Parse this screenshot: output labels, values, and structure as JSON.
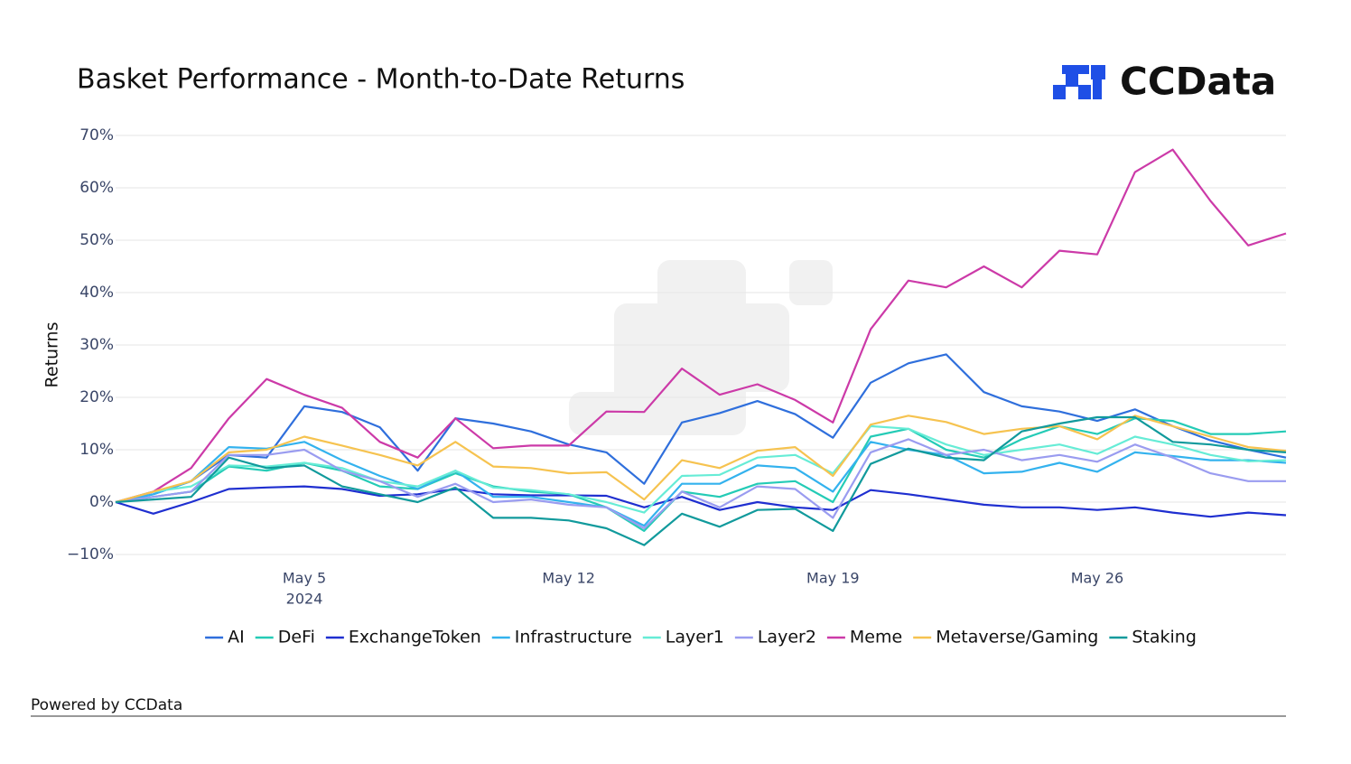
{
  "chart_data": {
    "type": "line",
    "title": "Basket Performance - Month-to-Date Returns",
    "brand": "CCData",
    "footer": "Powered by CCData",
    "ylabel": "Returns",
    "x_year_label": "2024",
    "x": [
      "2024-04-30",
      "2024-05-01",
      "2024-05-02",
      "2024-05-03",
      "2024-05-04",
      "2024-05-05",
      "2024-05-06",
      "2024-05-07",
      "2024-05-08",
      "2024-05-09",
      "2024-05-10",
      "2024-05-11",
      "2024-05-12",
      "2024-05-13",
      "2024-05-14",
      "2024-05-15",
      "2024-05-16",
      "2024-05-17",
      "2024-05-18",
      "2024-05-19",
      "2024-05-20",
      "2024-05-21",
      "2024-05-22",
      "2024-05-23",
      "2024-05-24",
      "2024-05-25",
      "2024-05-26",
      "2024-05-27",
      "2024-05-28",
      "2024-05-29",
      "2024-05-30",
      "2024-05-31"
    ],
    "xlim": [
      "2024-04-30",
      "2024-05-31"
    ],
    "xticks": [
      {
        "value": "2024-05-05",
        "label": "May 5"
      },
      {
        "value": "2024-05-12",
        "label": "May 12"
      },
      {
        "value": "2024-05-19",
        "label": "May 19"
      },
      {
        "value": "2024-05-26",
        "label": "May 26"
      }
    ],
    "ylim": [
      -11,
      70
    ],
    "yticks": [
      {
        "value": -10,
        "label": "−10%"
      },
      {
        "value": 0,
        "label": "0%"
      },
      {
        "value": 10,
        "label": "10%"
      },
      {
        "value": 20,
        "label": "20%"
      },
      {
        "value": 30,
        "label": "30%"
      },
      {
        "value": 40,
        "label": "40%"
      },
      {
        "value": 50,
        "label": "50%"
      },
      {
        "value": 60,
        "label": "60%"
      },
      {
        "value": 70,
        "label": "70%"
      }
    ],
    "grid": true,
    "legend": "bottom",
    "series": [
      {
        "name": "AI",
        "color": "#2f6fdc",
        "values": [
          0,
          1.5,
          4,
          9,
          8.5,
          18.3,
          17.2,
          14.3,
          6,
          16,
          15,
          13.5,
          11,
          9.5,
          3.5,
          15.2,
          17,
          19.3,
          16.8,
          12.3,
          22.8,
          26.5,
          28.2,
          21,
          18.3,
          17.3,
          15.5,
          17.7,
          14.5,
          11.8,
          10,
          8.5
        ]
      },
      {
        "name": "DeFi",
        "color": "#24cbb6",
        "values": [
          0,
          1,
          2,
          6.8,
          6,
          7.5,
          6,
          3,
          2.5,
          5.5,
          3,
          2,
          1.5,
          -1,
          -5.5,
          2,
          1,
          3.5,
          4,
          0,
          12.5,
          14,
          10,
          8.5,
          12,
          14.5,
          13,
          16,
          15.5,
          13,
          13,
          13.5
        ]
      },
      {
        "name": "ExchangeToken",
        "color": "#1f2fd0",
        "values": [
          0,
          -2.2,
          0,
          2.5,
          2.8,
          3,
          2.5,
          1.2,
          1.5,
          2.5,
          1.5,
          1.3,
          1.3,
          1.2,
          -1,
          1,
          -1.5,
          0,
          -1,
          -1.5,
          2.3,
          1.5,
          0.5,
          -0.5,
          -1,
          -1,
          -1.5,
          -1,
          -2,
          -2.8,
          -2,
          -2.5
        ]
      },
      {
        "name": "Infrastructure",
        "color": "#33b2ee",
        "values": [
          0,
          1.5,
          4,
          10.5,
          10.2,
          11.5,
          8,
          5,
          2.5,
          6,
          1,
          1,
          0,
          -1,
          -4.5,
          3.5,
          3.5,
          7,
          6.5,
          2,
          11.5,
          10,
          9,
          5.5,
          5.8,
          7.5,
          5.8,
          9.5,
          8.8,
          8,
          8,
          7.5
        ]
      },
      {
        "name": "Layer1",
        "color": "#66ecd6",
        "values": [
          0,
          2,
          3,
          7,
          6.8,
          7.5,
          6.5,
          4,
          3,
          6,
          2.8,
          2.3,
          1.5,
          0,
          -2,
          5,
          5.2,
          8.5,
          9,
          5.5,
          14.5,
          14,
          11,
          9,
          10,
          11,
          9.2,
          12.5,
          11,
          9,
          7.8,
          8
        ]
      },
      {
        "name": "Layer2",
        "color": "#9a9cf0",
        "values": [
          0,
          1,
          2,
          9,
          9,
          10,
          6,
          4,
          1,
          3.5,
          0,
          0.5,
          -0.5,
          -1,
          -5,
          2,
          -1,
          3,
          2.5,
          -3,
          9.5,
          12,
          9,
          10,
          8,
          9,
          7.7,
          11,
          8.5,
          5.5,
          4,
          4
        ]
      },
      {
        "name": "Meme",
        "color": "#cc3aa8",
        "values": [
          0,
          2,
          6.5,
          16,
          23.5,
          20.5,
          18,
          11.5,
          8.5,
          16,
          10.3,
          10.8,
          10.8,
          17.3,
          17.2,
          25.5,
          20.5,
          22.5,
          19.5,
          15.2,
          33,
          42.3,
          41,
          45,
          41,
          48,
          47.3,
          63,
          67.3,
          57.5,
          49,
          51.3
        ]
      },
      {
        "name": "Metaverse/Gaming",
        "color": "#f6c350",
        "values": [
          0,
          2,
          4,
          9.5,
          10,
          12.5,
          10.8,
          9,
          7,
          11.5,
          6.8,
          6.5,
          5.5,
          5.7,
          0.5,
          8,
          6.5,
          9.8,
          10.5,
          5,
          14.8,
          16.5,
          15.3,
          13,
          14,
          14.5,
          12,
          16.5,
          14.5,
          12.5,
          10.5,
          9.8
        ]
      },
      {
        "name": "Staking",
        "color": "#119a9c",
        "values": [
          0,
          0.5,
          1,
          8.5,
          6.5,
          7,
          3,
          1.5,
          0,
          2.8,
          -3,
          -3,
          -3.5,
          -5,
          -8.2,
          -2.2,
          -4.7,
          -1.5,
          -1.3,
          -5.5,
          7.3,
          10.2,
          8.5,
          8,
          13.5,
          15,
          16.2,
          16.2,
          11.5,
          11,
          10,
          9.5
        ]
      }
    ]
  }
}
